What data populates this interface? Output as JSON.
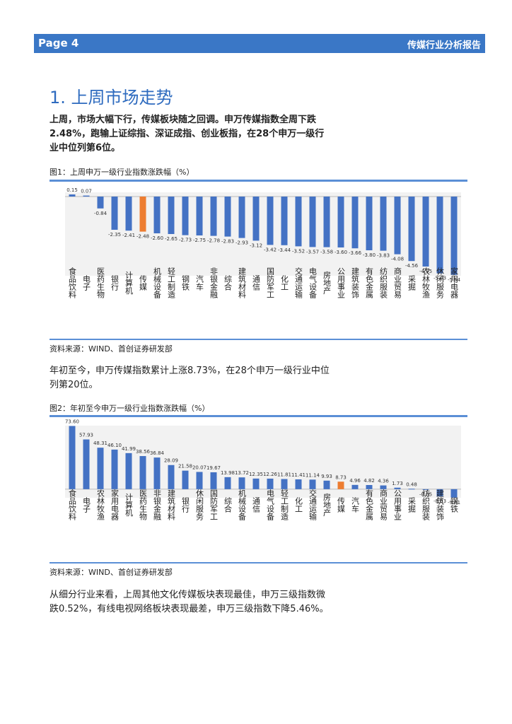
{
  "header": {
    "page_label": "Page 4",
    "report_title": "传媒行业分析报告"
  },
  "section": {
    "title": "1. 上周市场走势"
  },
  "paragraphs": {
    "p1": "上周，市场大幅下行，传媒板块随之回调。申万传媒指数全周下跌2.48%，跑输上证综指、深证成指、创业板指，在28个申万一级行业中位列第6位。",
    "p2": "年初至今，申万传媒指数累计上涨8.73%，在28个申万一级行业中位列第20位。",
    "p3": "从细分行业来看，上周其他文化传媒板块表现最佳，申万三级指数微跌0.52%，有线电视网络板块表现最差，申万三级指数下降5.46%。"
  },
  "figures": {
    "fig1_title": "图1：上周申万一级行业指数涨跌幅（%）",
    "fig1_source": "资料来源：WIND、首创证券研发部",
    "fig2_title": "图2：年初至今申万一级行业指数涨跌幅（%）",
    "fig2_source": "资料来源：WIND、首创证券研发部"
  },
  "colors": {
    "bar": "#4472c4",
    "highlight": "#ed7d31",
    "accent": "#3a77c6"
  },
  "chart_data": [
    {
      "type": "bar",
      "title": "图1：上周申万一级行业指数涨跌幅（%）",
      "highlight_category": "传媒",
      "categories": [
        "食品饮料",
        "电子",
        "医药生物",
        "银行",
        "计算机",
        "传媒",
        "机械设备",
        "轻工制造",
        "钢铁",
        "汽车",
        "非银金融",
        "综合",
        "建筑材料",
        "通信",
        "国防军工",
        "化工",
        "交通运输",
        "电气设备",
        "房地产",
        "公用事业",
        "建筑装饰",
        "有色金属",
        "纺织服装",
        "商业贸易",
        "采掘",
        "农林牧渔",
        "休闲服务",
        "家用电器"
      ],
      "values": [
        0.15,
        0.07,
        -0.84,
        -2.35,
        -2.41,
        -2.48,
        -2.6,
        -2.65,
        -2.73,
        -2.75,
        -2.78,
        -2.83,
        -2.93,
        -3.12,
        -3.42,
        -3.44,
        -3.52,
        -3.57,
        -3.58,
        -3.6,
        -3.66,
        -3.8,
        -3.83,
        -4.08,
        -4.56,
        -4.95,
        -5.43,
        -5.54
      ],
      "labels": [
        "0.15",
        "0.07",
        "-0.84",
        "-2.35",
        "-2.41",
        "-2.48",
        "-2.60",
        "-2.65",
        "-2.73",
        "-2.75",
        "-2.78",
        "-2.83",
        "-2.93",
        "-3.12",
        "-3.42",
        "-3.44",
        "-3.52",
        "-3.57",
        "-3.58",
        "-3.60",
        "-3.66",
        "-3.80",
        "-3.83",
        "-4.08",
        "-4.56",
        "-4.95",
        "-5.43",
        "-5.54"
      ],
      "ylim": [
        -5.6,
        0.3
      ]
    },
    {
      "type": "bar",
      "title": "图2：年初至今申万一级行业指数涨跌幅（%）",
      "highlight_category": "传媒",
      "categories": [
        "食品饮料",
        "电子",
        "农林牧渔",
        "家用电器",
        "计算机",
        "医药生物",
        "非银金融",
        "建筑材料",
        "银行",
        "休闲服务",
        "国防军工",
        "综合",
        "机械设备",
        "通信",
        "电气设备",
        "轻工制造",
        "化工",
        "交通运输",
        "房地产",
        "传媒",
        "汽车",
        "有色金属",
        "商业贸易",
        "公用事业",
        "采掘",
        "纺织服装",
        "建筑装饰",
        "钢铁"
      ],
      "values": [
        73.6,
        57.93,
        48.31,
        46.1,
        41.99,
        38.56,
        36.84,
        28.09,
        21.58,
        20.07,
        19.67,
        13.98,
        13.72,
        12.35,
        12.26,
        11.81,
        11.41,
        11.14,
        9.93,
        8.73,
        4.96,
        4.82,
        4.36,
        1.73,
        0.48,
        -0.65,
        -8.53,
        -9.81
      ],
      "labels": [
        "73.60",
        "57.93",
        "48.31",
        "46.10",
        "41.99",
        "38.56",
        "36.84",
        "28.09",
        "21.58",
        "20.07",
        "19.67",
        "13.98",
        "13.72",
        "12.35",
        "12.26",
        "11.81",
        "11.41",
        "11.14",
        "9.93",
        "8.73",
        "4.96",
        "4.82",
        "4.36",
        "1.73",
        "0.48",
        "-0.65",
        "-8.53",
        "-9.81"
      ],
      "ylim": [
        -10,
        74
      ]
    }
  ]
}
